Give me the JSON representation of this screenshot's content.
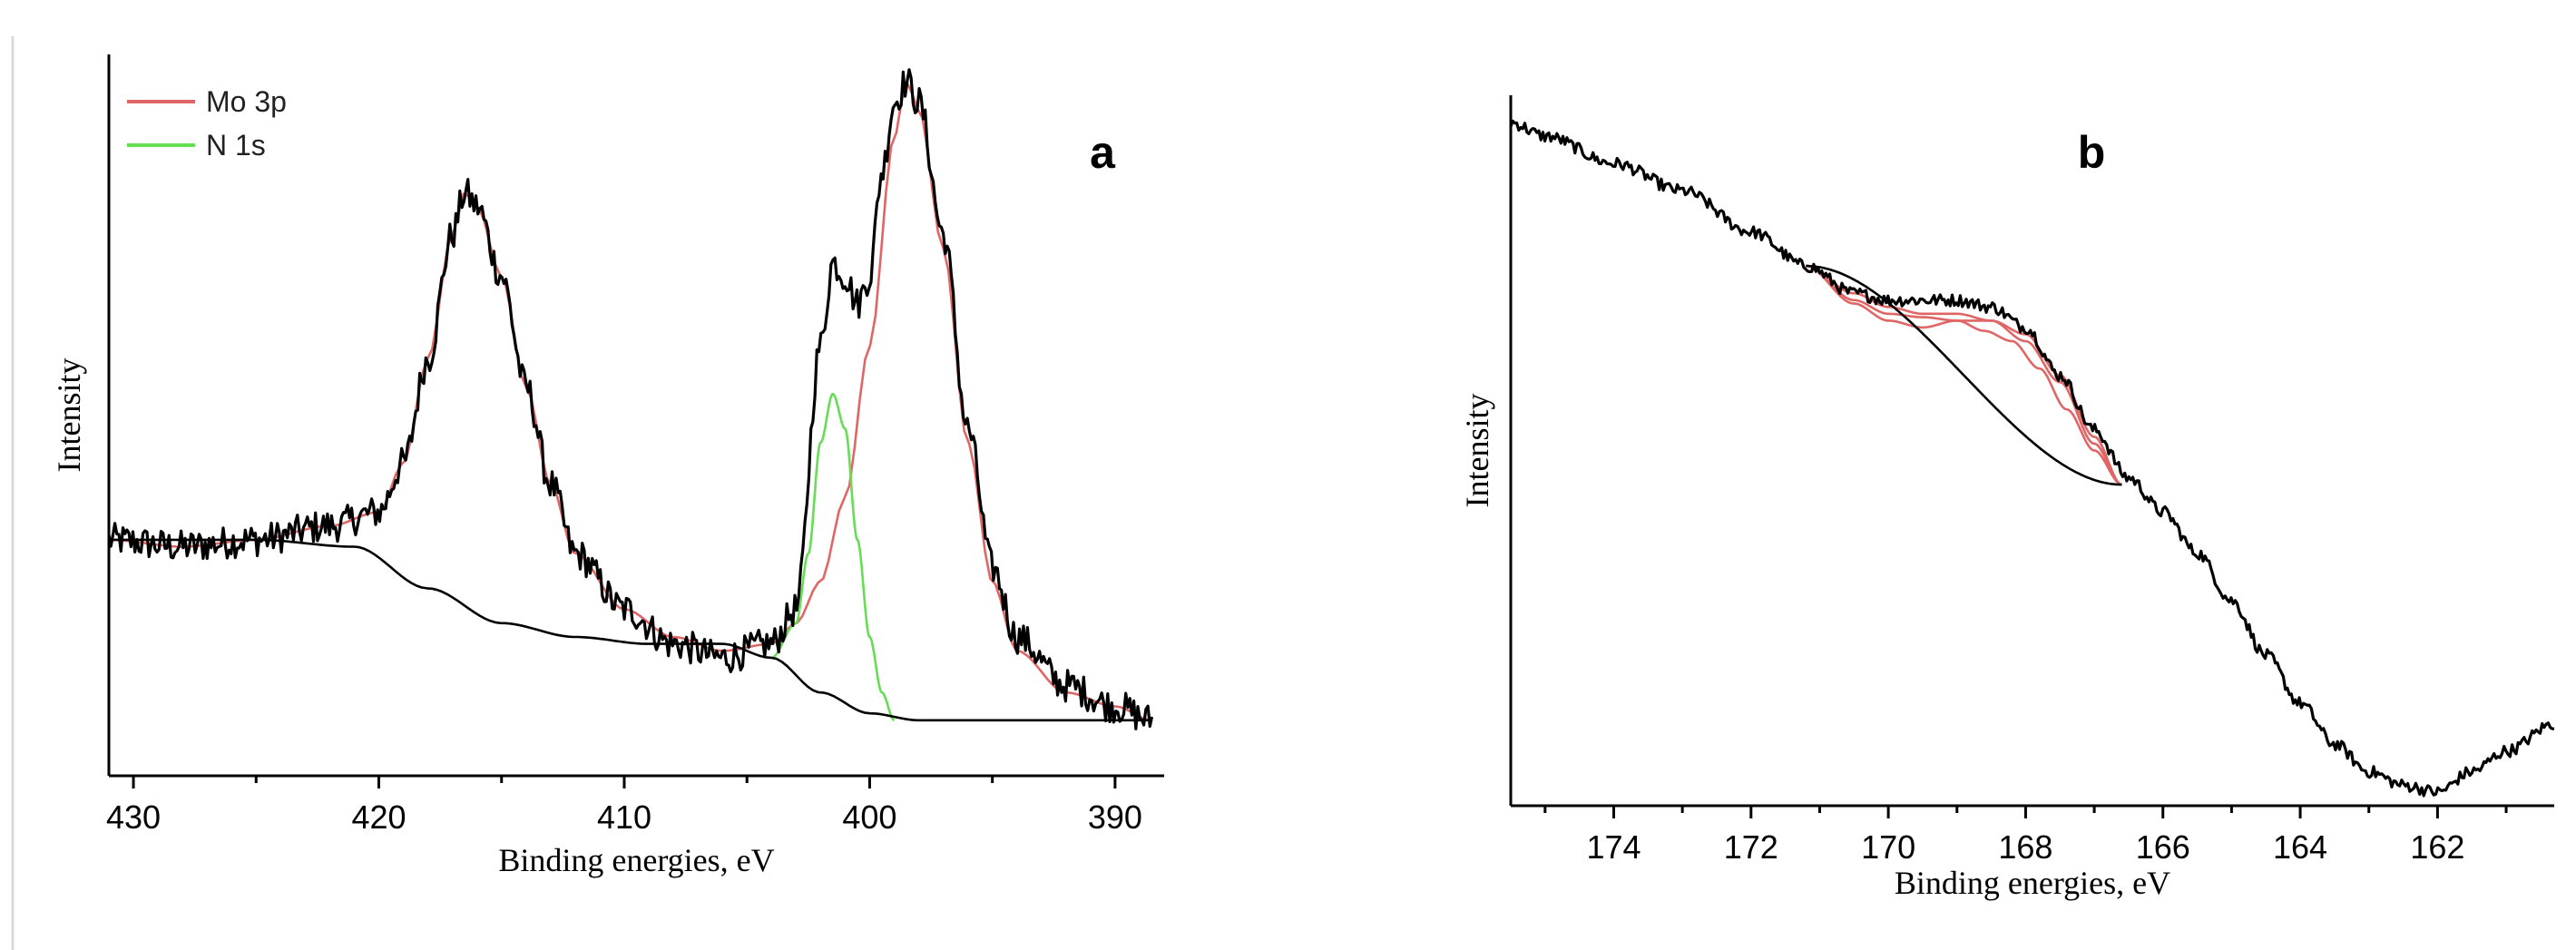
{
  "chart_data": [
    {
      "type": "line",
      "panel_label": "a",
      "xlabel": "Binding energies, eV",
      "ylabel": "Intensity",
      "xlim": [
        431,
        388
      ],
      "ylim": [
        0,
        100
      ],
      "x_ticks": [
        430,
        420,
        410,
        400,
        390
      ],
      "legend_position": "top-left",
      "legend": [
        {
          "label": "Mo 3p",
          "color": "#e06666"
        },
        {
          "label": "N 1s",
          "color": "#66dd55"
        }
      ],
      "series": [
        {
          "role": "measured",
          "color": "#000000",
          "noise": 2.4,
          "x": [
            431,
            428,
            425,
            422,
            420,
            419,
            418,
            417,
            416.5,
            416,
            415,
            414,
            413,
            412,
            410,
            408,
            406,
            404,
            403,
            402,
            401.5,
            401,
            400.5,
            400,
            399.5,
            399,
            398.5,
            398,
            397,
            396,
            395,
            394,
            392,
            390,
            388.5
          ],
          "y": [
            34,
            33,
            34,
            36,
            38,
            45,
            60,
            78,
            84,
            82,
            72,
            56,
            42,
            32,
            24,
            19,
            17,
            19,
            24,
            62,
            74,
            72,
            68,
            72,
            87,
            97,
            100,
            97,
            78,
            50,
            30,
            20,
            13,
            10,
            8
          ]
        },
        {
          "name": "Mo 3p",
          "color": "#e06666",
          "x": [
            431,
            428,
            425,
            422,
            420,
            419,
            418,
            417,
            416.5,
            416,
            415,
            414,
            413,
            412,
            410,
            408,
            406,
            404,
            403,
            402,
            401,
            400,
            399,
            398.5,
            398,
            397,
            396,
            395,
            394,
            392,
            390,
            388.5
          ],
          "y": [
            34,
            33,
            34,
            36,
            38,
            45,
            60,
            78,
            84,
            82,
            72,
            56,
            42,
            32,
            24,
            20,
            18,
            19,
            22,
            28,
            40,
            62,
            92,
            100,
            96,
            76,
            48,
            28,
            18,
            12,
            10,
            8
          ]
        },
        {
          "name": "N 1s",
          "color": "#66dd55",
          "x": [
            404,
            403,
            402.5,
            402,
            401.5,
            401,
            400.5,
            400,
            399.5,
            399
          ],
          "y": [
            17,
            22,
            32,
            48,
            55,
            50,
            34,
            20,
            12,
            8
          ]
        },
        {
          "role": "background",
          "color": "#000000",
          "x": [
            431,
            425,
            421,
            418,
            415,
            412,
            409,
            406,
            404,
            402,
            400,
            398,
            396,
            394,
            390,
            388.5
          ],
          "y": [
            34,
            34,
            33,
            27,
            22,
            20,
            19,
            19,
            17,
            12,
            9,
            8,
            8,
            8,
            8,
            8
          ]
        }
      ]
    },
    {
      "type": "line",
      "panel_label": "b",
      "xlabel": "Binding energies, eV",
      "ylabel": "Intensity",
      "xlim": [
        175.5,
        160.3
      ],
      "ylim": [
        0,
        100
      ],
      "x_ticks": [
        174,
        172,
        170,
        168,
        166,
        164,
        162
      ],
      "series": [
        {
          "role": "measured",
          "color": "#000000",
          "noise": 0.9,
          "x": [
            175.5,
            175,
            174,
            173,
            172,
            171.2,
            170.5,
            170,
            169.5,
            169,
            168.5,
            168,
            167.5,
            167,
            166.5,
            166,
            165.5,
            165,
            164.5,
            164,
            163.5,
            163,
            162.5,
            162,
            161.5,
            161,
            160.3
          ],
          "y": [
            100,
            98,
            94,
            90,
            84,
            79,
            75,
            74,
            74,
            74,
            73,
            70,
            63,
            55,
            48,
            43,
            37,
            30,
            22,
            15,
            9,
            5,
            3,
            2,
            5,
            8,
            12
          ]
        },
        {
          "role": "fit",
          "color": "#e06666",
          "x": [
            171.2,
            170.5,
            170,
            169.5,
            169,
            168.5,
            168,
            167.5,
            167,
            166.6
          ],
          "y": [
            79,
            75,
            73,
            72,
            72,
            71,
            68,
            62,
            53,
            47
          ]
        },
        {
          "role": "component",
          "color": "#e06666",
          "x": [
            171.2,
            170.5,
            170,
            169.5,
            169,
            168.6,
            168.2,
            167.8,
            167.4,
            167,
            166.6
          ],
          "y": [
            79,
            74,
            72,
            71.5,
            71,
            69.5,
            68,
            64,
            58,
            52,
            47
          ]
        },
        {
          "role": "component",
          "color": "#e06666",
          "x": [
            171.2,
            170.5,
            170,
            169.5,
            169,
            168.5,
            168,
            167.5,
            167,
            166.6
          ],
          "y": [
            79,
            73.5,
            71,
            70,
            71,
            71,
            69,
            63,
            54,
            47
          ]
        },
        {
          "role": "background",
          "color": "#000000",
          "x": [
            171.2,
            166.6
          ],
          "y": [
            79,
            47
          ]
        }
      ]
    }
  ]
}
